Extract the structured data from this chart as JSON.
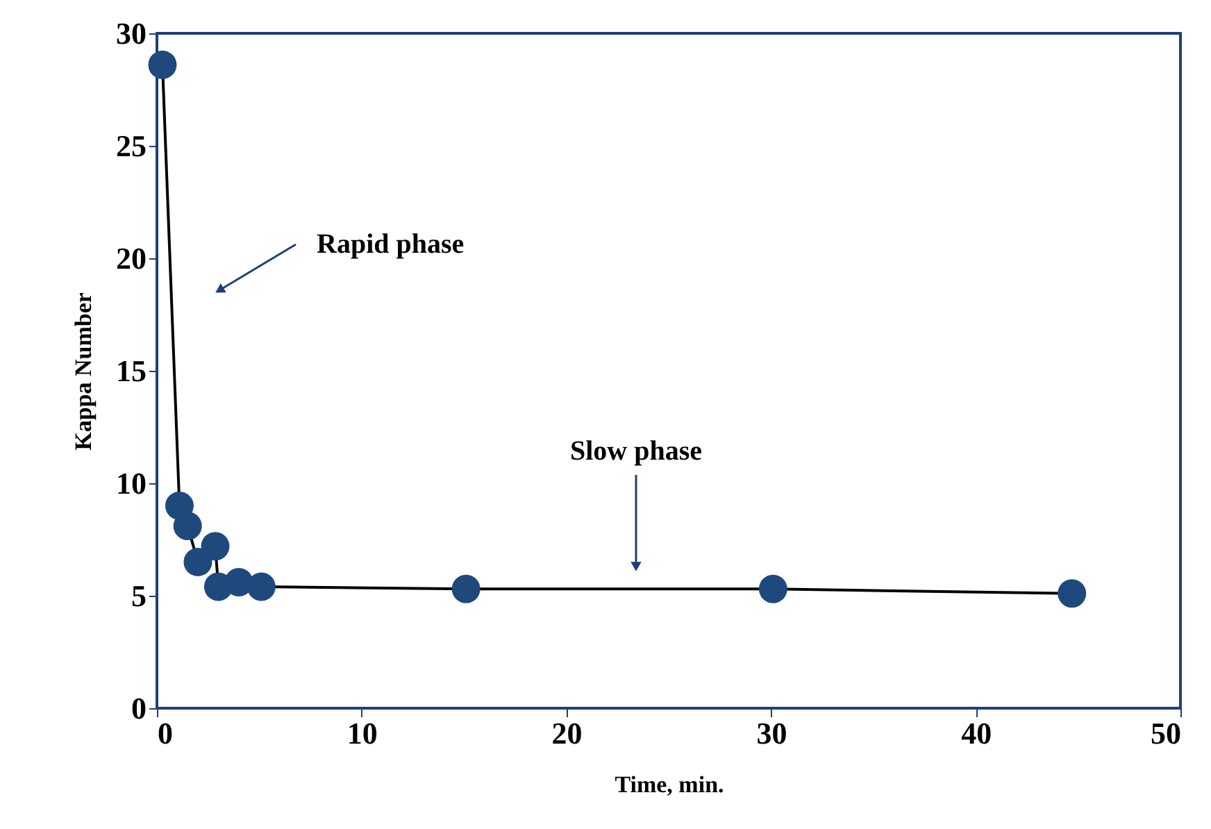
{
  "chart_data": {
    "type": "line",
    "xlabel": "Time, min.",
    "ylabel": "Kappa Number",
    "x": [
      0.27,
      1.1,
      1.5,
      2.0,
      2.85,
      3.0,
      4.0,
      5.1,
      15.1,
      30.1,
      44.7
    ],
    "series": [
      {
        "color": "#000000",
        "values": [
          28.6,
          9.0,
          8.1,
          6.5,
          7.2,
          5.4,
          5.6,
          5.4,
          5.3,
          5.3,
          5.1
        ]
      },
      {
        "type": "scatter",
        "color": "#1f497d",
        "marker": "circle",
        "values": [
          28.6,
          9.0,
          8.1,
          6.5,
          7.2,
          5.4,
          5.6,
          5.4,
          5.3,
          5.3,
          5.1
        ]
      }
    ],
    "xlim": [
      0,
      50
    ],
    "xticks": [
      0,
      10,
      20,
      30,
      40,
      50
    ],
    "ylim": [
      0,
      30
    ],
    "yticks": [
      0,
      5,
      10,
      15,
      20,
      25,
      30
    ],
    "grid": false,
    "annotations": [
      "Rapid phase",
      "Slow phase"
    ]
  }
}
